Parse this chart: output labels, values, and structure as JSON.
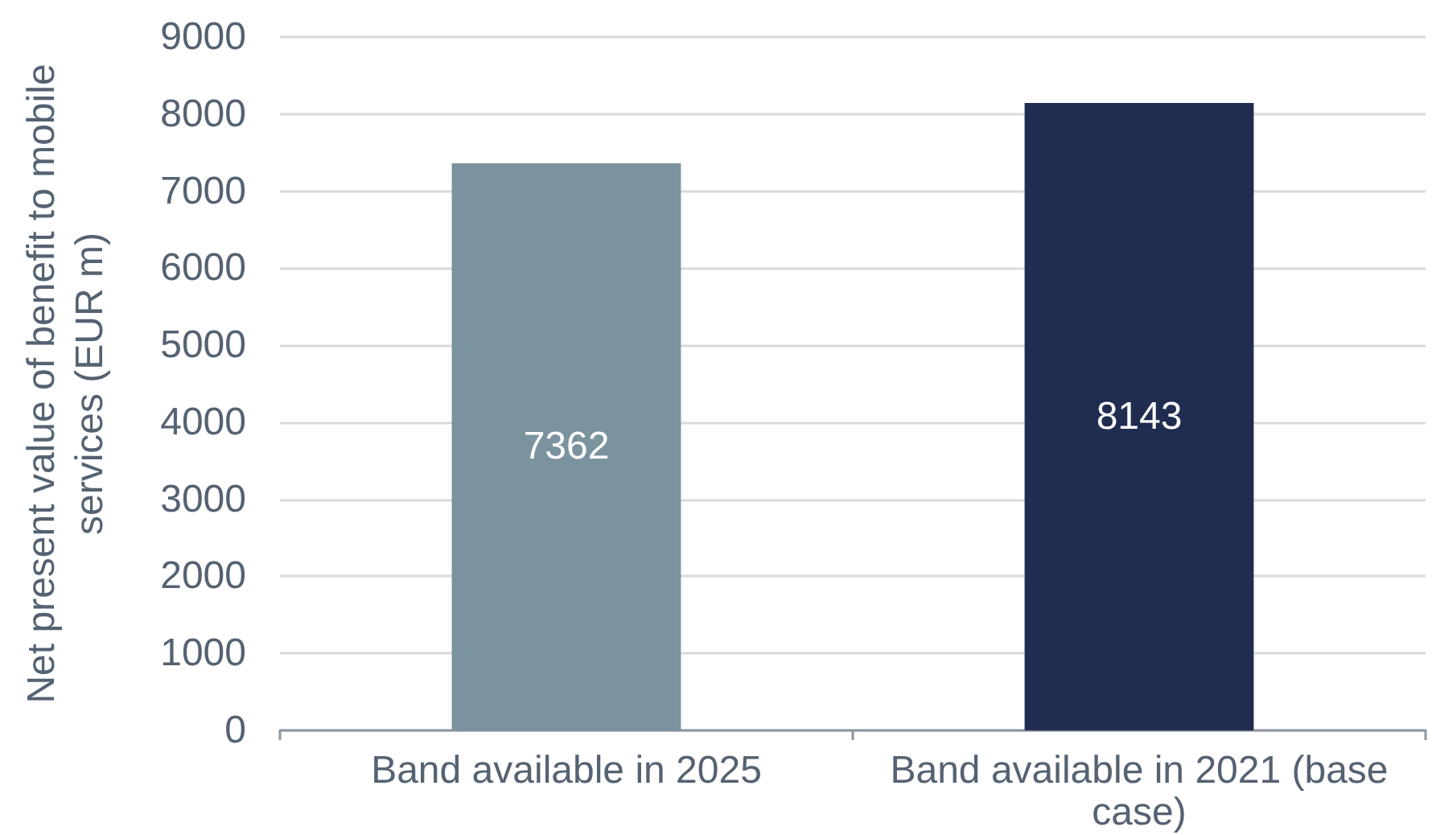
{
  "chart_data": {
    "type": "bar",
    "categories": [
      "Band available in 2025",
      "Band available in 2021 (base case)"
    ],
    "values": [
      7362,
      8143
    ],
    "colors": [
      "#7b939e",
      "#202c50"
    ],
    "ylabel": "Net present value of benefit to mobile services (EUR m)",
    "ylim": [
      0,
      9000
    ],
    "yticks": [
      0,
      1000,
      2000,
      3000,
      4000,
      5000,
      6000,
      7000,
      8000,
      9000
    ],
    "grid": "y",
    "data_labels": true
  }
}
